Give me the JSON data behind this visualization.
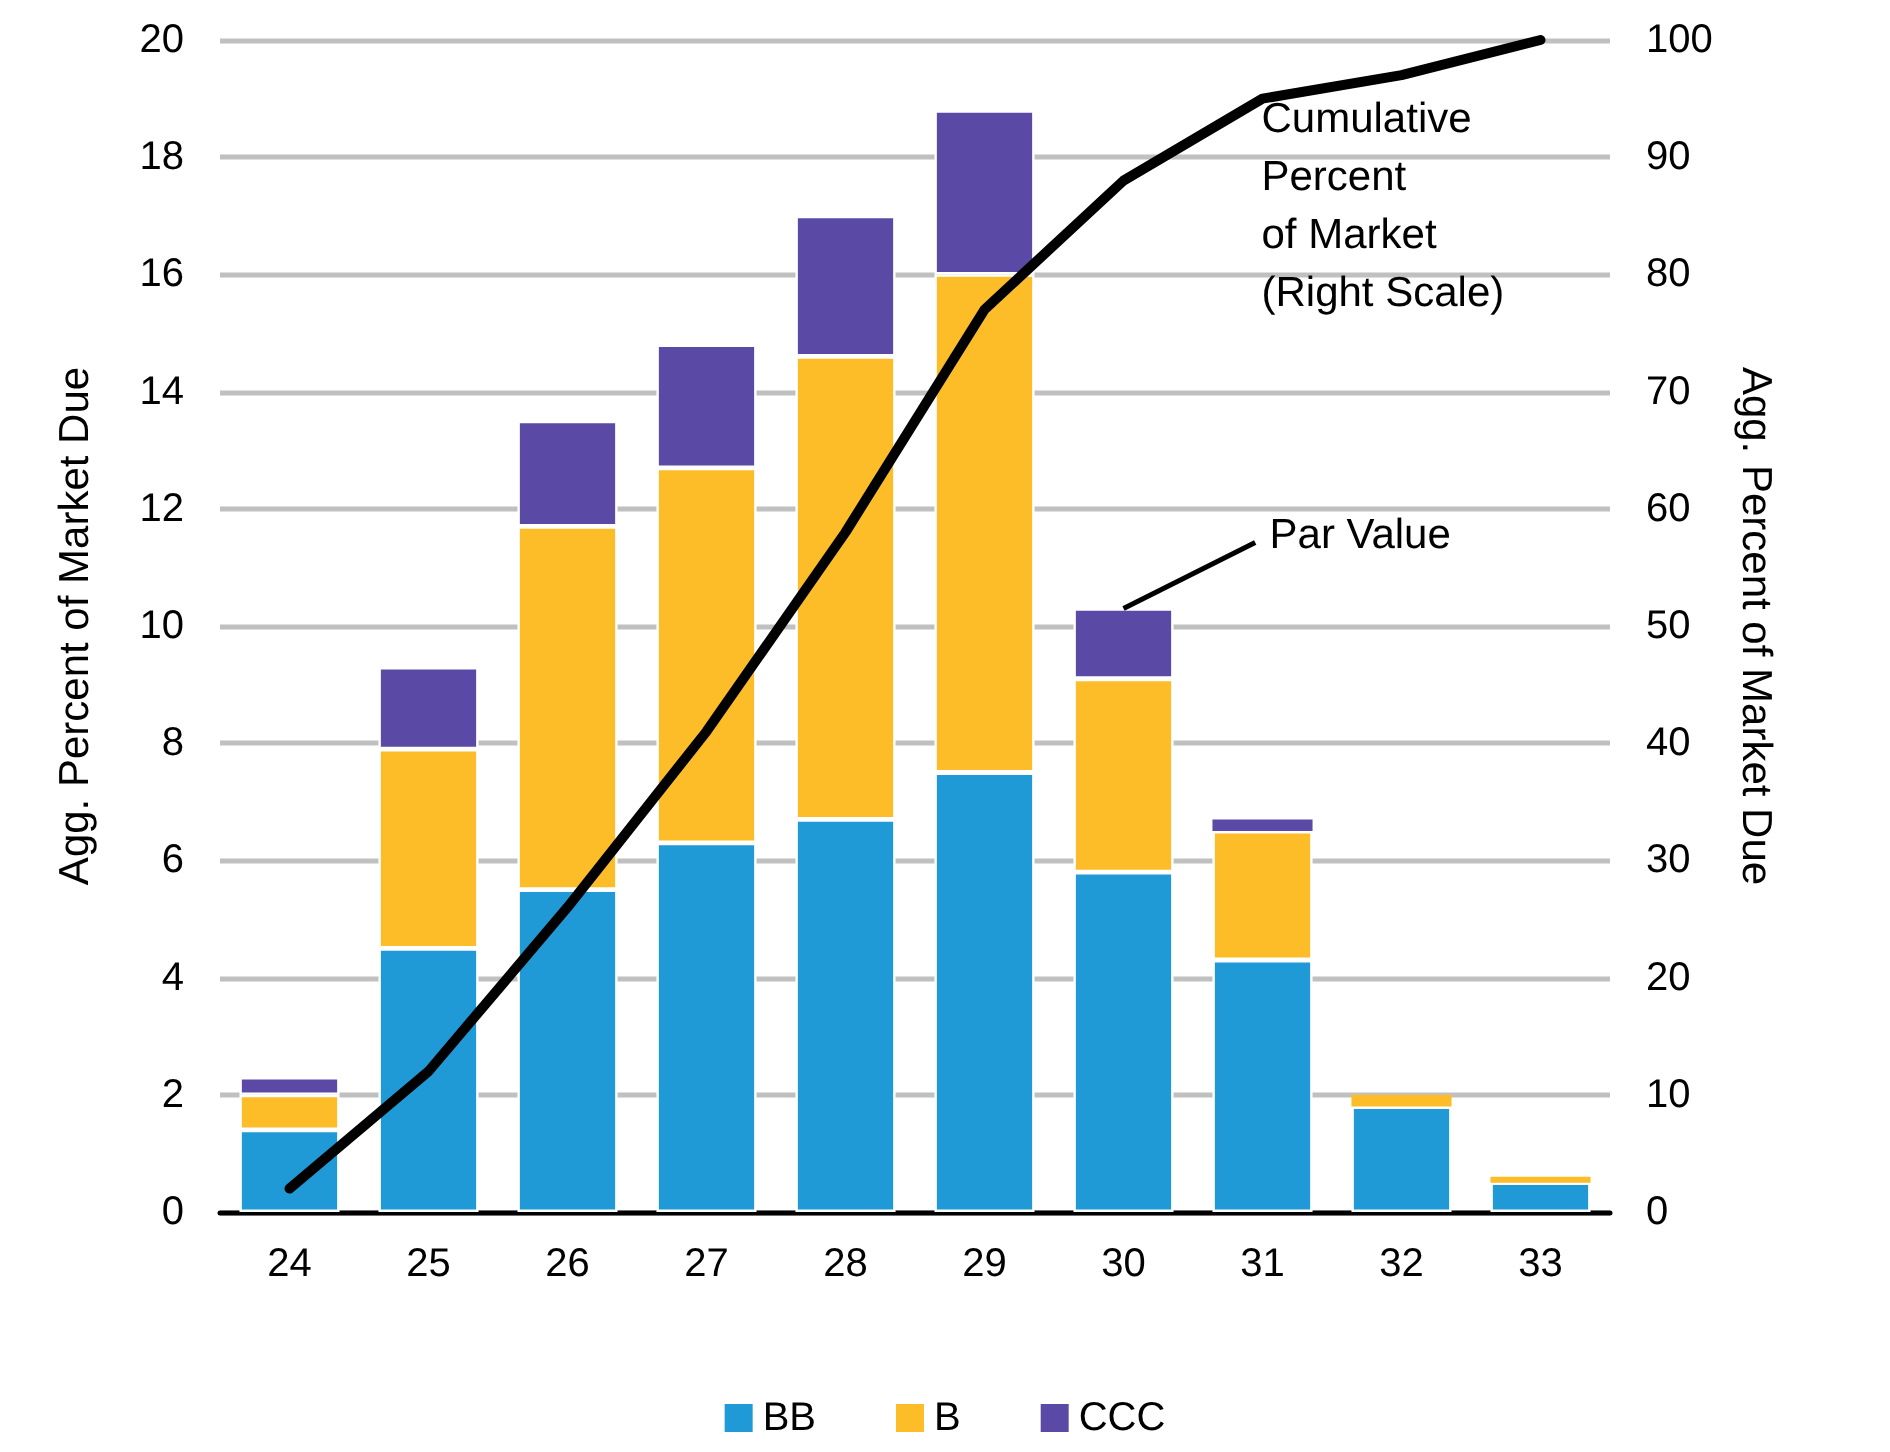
{
  "chart_data": {
    "type": "bar",
    "stacked": true,
    "categories": [
      "24",
      "25",
      "26",
      "27",
      "28",
      "29",
      "30",
      "31",
      "32",
      "33"
    ],
    "series": [
      {
        "name": "BB",
        "color": "#209ad6",
        "values": [
          1.4,
          4.5,
          5.5,
          6.3,
          6.7,
          7.5,
          5.8,
          4.3,
          1.8,
          0.5
        ]
      },
      {
        "name": "B",
        "color": "#fcbd28",
        "values": [
          0.6,
          3.4,
          6.2,
          6.4,
          7.9,
          8.5,
          3.3,
          2.2,
          0.2,
          0.1
        ]
      },
      {
        "name": "CCC",
        "color": "#5a4aa6",
        "values": [
          0.3,
          1.4,
          1.8,
          2.1,
          2.4,
          2.8,
          1.2,
          0.2,
          0,
          0
        ]
      },
      {
        "type": "line",
        "axis": "y2",
        "color": "#000000",
        "marker": "none",
        "values": [
          2,
          12,
          26,
          41,
          58,
          77,
          88,
          95,
          97,
          100
        ]
      }
    ],
    "ylabel": "Agg. Percent of Market Due",
    "y2label": "Agg. Percent of Market Due",
    "ylim": [
      0,
      20
    ],
    "yticks": [
      0,
      2,
      4,
      6,
      8,
      10,
      12,
      14,
      16,
      18,
      20
    ],
    "y2lim": [
      0,
      100
    ],
    "y2ticks": [
      0,
      10,
      20,
      30,
      40,
      50,
      60,
      70,
      80,
      90,
      100
    ],
    "annotations": [
      "Cumulative\nPercent\nof Market\n(Right Scale)",
      {
        "text": "Par Value",
        "x": "30",
        "y": 10.3
      }
    ],
    "grid": "y",
    "legend": "bottom"
  }
}
